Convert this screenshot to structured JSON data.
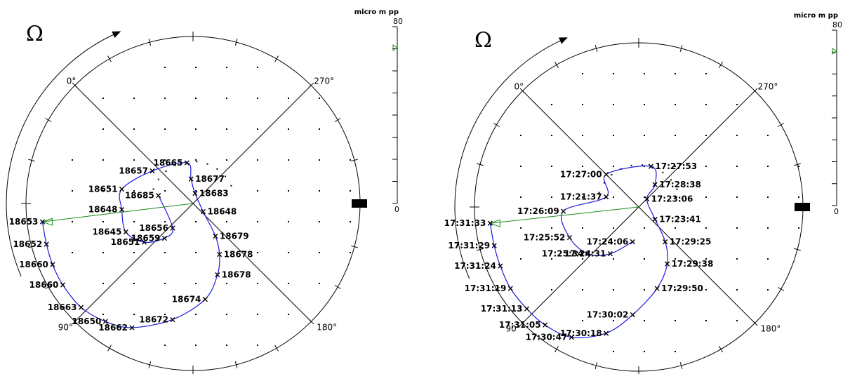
{
  "chart_data": [
    {
      "type": "scatter",
      "omega_symbol": "Ω",
      "angle_labels": [
        "0°",
        "270°",
        "180°",
        "90°"
      ],
      "unit_label": "micro m pp",
      "scale_max": "80",
      "scale_min": "0",
      "colors": {
        "loop": "#1a1adc",
        "vector": "#1a8a1a",
        "marker": "#000000",
        "scale_marker": "#1a8a1a"
      },
      "points": [
        {
          "label": "18653",
          "x": -74,
          "y": -9
        },
        {
          "label": "18652",
          "x": -72,
          "y": -20
        },
        {
          "label": "18660",
          "x": -69,
          "y": -30
        },
        {
          "label": "18660",
          "x": -64,
          "y": -40
        },
        {
          "label": "18663",
          "x": -55,
          "y": -51
        },
        {
          "label": "18650",
          "x": -43,
          "y": -58
        },
        {
          "label": "18662",
          "x": -30,
          "y": -61
        },
        {
          "label": "18672",
          "x": -10,
          "y": -57
        },
        {
          "label": "18674",
          "x": 6,
          "y": -47
        },
        {
          "label": "18678",
          "x": 12,
          "y": -35
        },
        {
          "label": "18678",
          "x": 13,
          "y": -25
        },
        {
          "label": "18679",
          "x": 11,
          "y": -16
        },
        {
          "label": "18648",
          "x": 5,
          "y": -4
        },
        {
          "label": "18683",
          "x": 1,
          "y": 5
        },
        {
          "label": "18677",
          "x": -1,
          "y": 12
        },
        {
          "label": "18665",
          "x": -3,
          "y": 20
        },
        {
          "label": "18657",
          "x": -20,
          "y": 16
        },
        {
          "label": "18651",
          "x": -35,
          "y": 7
        },
        {
          "label": "18648",
          "x": -35,
          "y": -3
        },
        {
          "label": "18645",
          "x": -33,
          "y": -14
        },
        {
          "label": "18651",
          "x": -24,
          "y": -19
        },
        {
          "label": "18659",
          "x": -14,
          "y": -17
        },
        {
          "label": "18656",
          "x": -10,
          "y": -12
        },
        {
          "label": "18685",
          "x": -17,
          "y": 4
        }
      ]
    },
    {
      "type": "scatter",
      "omega_symbol": "Ω",
      "angle_labels": [
        "0°",
        "270°",
        "180°",
        "90°"
      ],
      "unit_label": "micro m pp",
      "scale_max": "80",
      "scale_min": "0",
      "colors": {
        "loop": "#1a1adc",
        "vector": "#1a8a1a",
        "marker": "#000000",
        "scale_marker": "#1a8a1a"
      },
      "points": [
        {
          "label": "17:31:33",
          "x": -73,
          "y": -8
        },
        {
          "label": "17:31:29",
          "x": -71,
          "y": -19
        },
        {
          "label": "17:31:24",
          "x": -68,
          "y": -29
        },
        {
          "label": "17:31:19",
          "x": -63,
          "y": -40
        },
        {
          "label": "17:31:13",
          "x": -55,
          "y": -50
        },
        {
          "label": "17:31:05",
          "x": -46,
          "y": -58
        },
        {
          "label": "17:30:47",
          "x": -33,
          "y": -64
        },
        {
          "label": "17:30:18",
          "x": -16,
          "y": -62
        },
        {
          "label": "17:30:02",
          "x": -3,
          "y": -53
        },
        {
          "label": "17:29:50",
          "x": 9,
          "y": -40
        },
        {
          "label": "17:29:38",
          "x": 14,
          "y": -28
        },
        {
          "label": "17:29:25",
          "x": 13,
          "y": -17
        },
        {
          "label": "17:23:41",
          "x": 8,
          "y": -6
        },
        {
          "label": "17:23:06",
          "x": 4,
          "y": 4
        },
        {
          "label": "17:28:38",
          "x": 8,
          "y": 11
        },
        {
          "label": "17:27:53",
          "x": 6,
          "y": 20
        },
        {
          "label": "17:27:00",
          "x": -16,
          "y": 16
        },
        {
          "label": "17:21:37",
          "x": -16,
          "y": 5
        },
        {
          "label": "17:26:09",
          "x": -37,
          "y": -2
        },
        {
          "label": "17:25:52",
          "x": -34,
          "y": -15
        },
        {
          "label": "17:25:34",
          "x": -25,
          "y": -23
        },
        {
          "label": "17:24:31",
          "x": -14,
          "y": -23
        },
        {
          "label": "17:24:06",
          "x": -3,
          "y": -17
        }
      ]
    }
  ]
}
